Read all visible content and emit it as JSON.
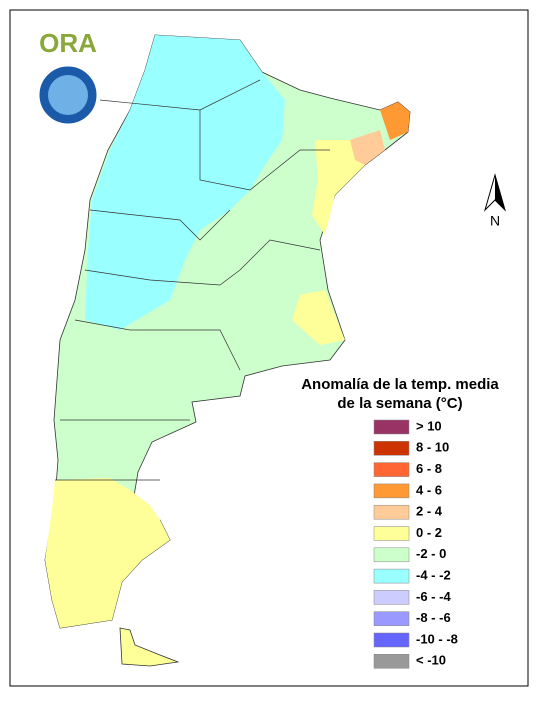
{
  "logo": {
    "text": "ORA"
  },
  "north_arrow": {
    "label": "N"
  },
  "legend": {
    "title": [
      "Anomalía de la temp. media",
      "de la semana (°C)"
    ],
    "items": [
      {
        "label": "> 10",
        "color": "#993366"
      },
      {
        "label": "8 - 10",
        "color": "#cc3300"
      },
      {
        "label": "6 - 8",
        "color": "#ff6633"
      },
      {
        "label": "4 - 6",
        "color": "#ff9933"
      },
      {
        "label": "2 - 4",
        "color": "#ffcc99"
      },
      {
        "label": "0 - 2",
        "color": "#ffff99"
      },
      {
        "label": "-2 - 0",
        "color": "#ccffcc"
      },
      {
        "label": "-4 - -2",
        "color": "#99ffff"
      },
      {
        "label": "-6 - -4",
        "color": "#ccccff"
      },
      {
        "label": "-8 - -6",
        "color": "#9999ff"
      },
      {
        "label": "-10 - -8",
        "color": "#6666ff"
      },
      {
        "label": "< -10",
        "color": "#999999"
      }
    ]
  }
}
